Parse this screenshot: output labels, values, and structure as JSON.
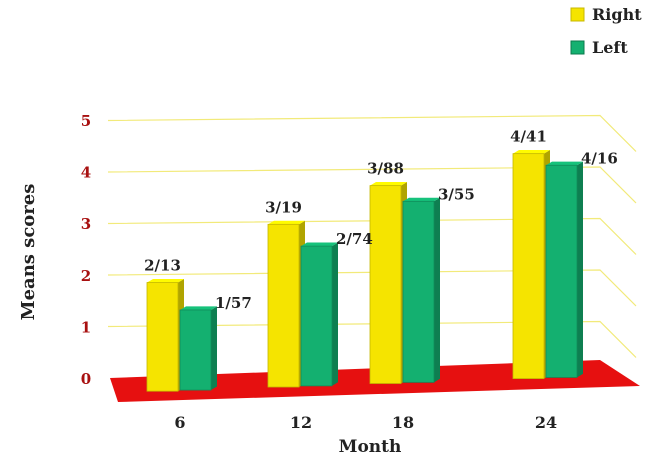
{
  "chart_data": {
    "type": "bar",
    "title": "",
    "xlabel": "Month",
    "ylabel": "Means scores",
    "categories": [
      "6",
      "12",
      "18",
      "24"
    ],
    "ylim": [
      0,
      5
    ],
    "yticks": [
      "0",
      "1",
      "2",
      "3",
      "4",
      "5"
    ],
    "grid": true,
    "legend_position": "top-right",
    "series": [
      {
        "name": "Right",
        "color": "#f5e400",
        "values": [
          2.13,
          3.19,
          3.88,
          4.41
        ],
        "labels": [
          "2/13",
          "3/19",
          "3/88",
          "4/41"
        ]
      },
      {
        "name": "Left",
        "color": "#14b070",
        "values": [
          1.57,
          2.74,
          3.55,
          4.16
        ],
        "labels": [
          "1/57",
          "2/74",
          "3/55",
          "4/16"
        ]
      }
    ],
    "colors": {
      "floor": "#e61010",
      "gridline": "#f2ea7a",
      "ytick_label": "#a81010"
    }
  }
}
